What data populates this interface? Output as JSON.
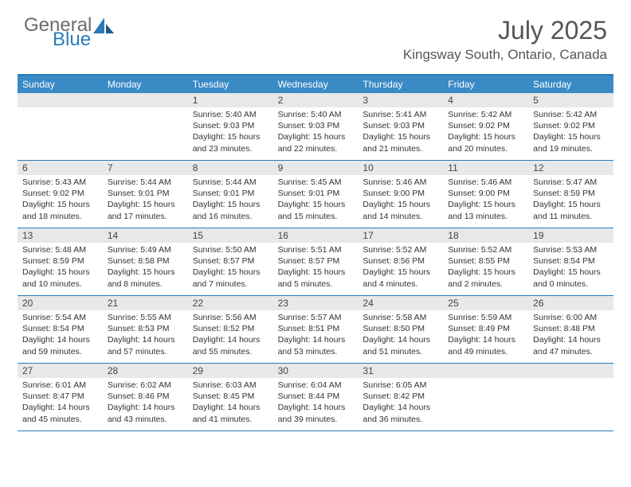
{
  "logo": {
    "word1": "General",
    "word2": "Blue"
  },
  "title": "July 2025",
  "location": "Kingsway South, Ontario, Canada",
  "accent_color": "#3a8ac6",
  "dayNames": [
    "Sunday",
    "Monday",
    "Tuesday",
    "Wednesday",
    "Thursday",
    "Friday",
    "Saturday"
  ],
  "weeks": [
    [
      null,
      null,
      {
        "n": "1",
        "sr": "Sunrise: 5:40 AM",
        "ss": "Sunset: 9:03 PM",
        "d1": "Daylight: 15 hours",
        "d2": "and 23 minutes."
      },
      {
        "n": "2",
        "sr": "Sunrise: 5:40 AM",
        "ss": "Sunset: 9:03 PM",
        "d1": "Daylight: 15 hours",
        "d2": "and 22 minutes."
      },
      {
        "n": "3",
        "sr": "Sunrise: 5:41 AM",
        "ss": "Sunset: 9:03 PM",
        "d1": "Daylight: 15 hours",
        "d2": "and 21 minutes."
      },
      {
        "n": "4",
        "sr": "Sunrise: 5:42 AM",
        "ss": "Sunset: 9:02 PM",
        "d1": "Daylight: 15 hours",
        "d2": "and 20 minutes."
      },
      {
        "n": "5",
        "sr": "Sunrise: 5:42 AM",
        "ss": "Sunset: 9:02 PM",
        "d1": "Daylight: 15 hours",
        "d2": "and 19 minutes."
      }
    ],
    [
      {
        "n": "6",
        "sr": "Sunrise: 5:43 AM",
        "ss": "Sunset: 9:02 PM",
        "d1": "Daylight: 15 hours",
        "d2": "and 18 minutes."
      },
      {
        "n": "7",
        "sr": "Sunrise: 5:44 AM",
        "ss": "Sunset: 9:01 PM",
        "d1": "Daylight: 15 hours",
        "d2": "and 17 minutes."
      },
      {
        "n": "8",
        "sr": "Sunrise: 5:44 AM",
        "ss": "Sunset: 9:01 PM",
        "d1": "Daylight: 15 hours",
        "d2": "and 16 minutes."
      },
      {
        "n": "9",
        "sr": "Sunrise: 5:45 AM",
        "ss": "Sunset: 9:01 PM",
        "d1": "Daylight: 15 hours",
        "d2": "and 15 minutes."
      },
      {
        "n": "10",
        "sr": "Sunrise: 5:46 AM",
        "ss": "Sunset: 9:00 PM",
        "d1": "Daylight: 15 hours",
        "d2": "and 14 minutes."
      },
      {
        "n": "11",
        "sr": "Sunrise: 5:46 AM",
        "ss": "Sunset: 9:00 PM",
        "d1": "Daylight: 15 hours",
        "d2": "and 13 minutes."
      },
      {
        "n": "12",
        "sr": "Sunrise: 5:47 AM",
        "ss": "Sunset: 8:59 PM",
        "d1": "Daylight: 15 hours",
        "d2": "and 11 minutes."
      }
    ],
    [
      {
        "n": "13",
        "sr": "Sunrise: 5:48 AM",
        "ss": "Sunset: 8:59 PM",
        "d1": "Daylight: 15 hours",
        "d2": "and 10 minutes."
      },
      {
        "n": "14",
        "sr": "Sunrise: 5:49 AM",
        "ss": "Sunset: 8:58 PM",
        "d1": "Daylight: 15 hours",
        "d2": "and 8 minutes."
      },
      {
        "n": "15",
        "sr": "Sunrise: 5:50 AM",
        "ss": "Sunset: 8:57 PM",
        "d1": "Daylight: 15 hours",
        "d2": "and 7 minutes."
      },
      {
        "n": "16",
        "sr": "Sunrise: 5:51 AM",
        "ss": "Sunset: 8:57 PM",
        "d1": "Daylight: 15 hours",
        "d2": "and 5 minutes."
      },
      {
        "n": "17",
        "sr": "Sunrise: 5:52 AM",
        "ss": "Sunset: 8:56 PM",
        "d1": "Daylight: 15 hours",
        "d2": "and 4 minutes."
      },
      {
        "n": "18",
        "sr": "Sunrise: 5:52 AM",
        "ss": "Sunset: 8:55 PM",
        "d1": "Daylight: 15 hours",
        "d2": "and 2 minutes."
      },
      {
        "n": "19",
        "sr": "Sunrise: 5:53 AM",
        "ss": "Sunset: 8:54 PM",
        "d1": "Daylight: 15 hours",
        "d2": "and 0 minutes."
      }
    ],
    [
      {
        "n": "20",
        "sr": "Sunrise: 5:54 AM",
        "ss": "Sunset: 8:54 PM",
        "d1": "Daylight: 14 hours",
        "d2": "and 59 minutes."
      },
      {
        "n": "21",
        "sr": "Sunrise: 5:55 AM",
        "ss": "Sunset: 8:53 PM",
        "d1": "Daylight: 14 hours",
        "d2": "and 57 minutes."
      },
      {
        "n": "22",
        "sr": "Sunrise: 5:56 AM",
        "ss": "Sunset: 8:52 PM",
        "d1": "Daylight: 14 hours",
        "d2": "and 55 minutes."
      },
      {
        "n": "23",
        "sr": "Sunrise: 5:57 AM",
        "ss": "Sunset: 8:51 PM",
        "d1": "Daylight: 14 hours",
        "d2": "and 53 minutes."
      },
      {
        "n": "24",
        "sr": "Sunrise: 5:58 AM",
        "ss": "Sunset: 8:50 PM",
        "d1": "Daylight: 14 hours",
        "d2": "and 51 minutes."
      },
      {
        "n": "25",
        "sr": "Sunrise: 5:59 AM",
        "ss": "Sunset: 8:49 PM",
        "d1": "Daylight: 14 hours",
        "d2": "and 49 minutes."
      },
      {
        "n": "26",
        "sr": "Sunrise: 6:00 AM",
        "ss": "Sunset: 8:48 PM",
        "d1": "Daylight: 14 hours",
        "d2": "and 47 minutes."
      }
    ],
    [
      {
        "n": "27",
        "sr": "Sunrise: 6:01 AM",
        "ss": "Sunset: 8:47 PM",
        "d1": "Daylight: 14 hours",
        "d2": "and 45 minutes."
      },
      {
        "n": "28",
        "sr": "Sunrise: 6:02 AM",
        "ss": "Sunset: 8:46 PM",
        "d1": "Daylight: 14 hours",
        "d2": "and 43 minutes."
      },
      {
        "n": "29",
        "sr": "Sunrise: 6:03 AM",
        "ss": "Sunset: 8:45 PM",
        "d1": "Daylight: 14 hours",
        "d2": "and 41 minutes."
      },
      {
        "n": "30",
        "sr": "Sunrise: 6:04 AM",
        "ss": "Sunset: 8:44 PM",
        "d1": "Daylight: 14 hours",
        "d2": "and 39 minutes."
      },
      {
        "n": "31",
        "sr": "Sunrise: 6:05 AM",
        "ss": "Sunset: 8:42 PM",
        "d1": "Daylight: 14 hours",
        "d2": "and 36 minutes."
      },
      null,
      null
    ]
  ]
}
